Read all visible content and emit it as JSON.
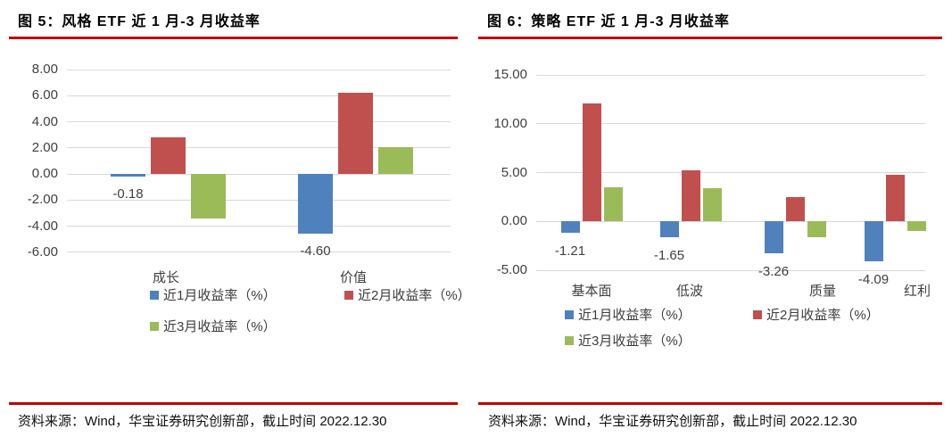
{
  "accent_red": "#C00000",
  "footer": {
    "text": "资料来源：Wind，华宝证券研究创新部，截止时间 2022.12.30"
  },
  "chart_data": [
    {
      "type": "bar",
      "title": "图 5：风格 ETF 近 1 月-3 月收益率",
      "categories": [
        "成长",
        "价值"
      ],
      "series": [
        {
          "name": "近1月收益率（%）",
          "color": "#4F81BD",
          "values": [
            -0.18,
            -4.6
          ],
          "data_labels": [
            "-0.18",
            "-4.60"
          ]
        },
        {
          "name": "近2月收益率（%）",
          "color": "#C0504D",
          "values": [
            2.8,
            6.2
          ]
        },
        {
          "name": "近3月收益率（%）",
          "color": "#9BBB59",
          "values": [
            -3.4,
            2.05
          ]
        }
      ],
      "ylim": [
        -6,
        8
      ],
      "ytick_step": 2,
      "yticks": [
        "8.00",
        "6.00",
        "4.00",
        "2.00",
        "0.00",
        "-2.00",
        "-4.00",
        "-6.00"
      ],
      "grid": true,
      "legend_position": "bottom"
    },
    {
      "type": "bar",
      "title": "图 6：策略 ETF 近 1 月-3 月收益率",
      "categories": [
        "基本面",
        "低波",
        "质量",
        "红利"
      ],
      "series": [
        {
          "name": "近1月收益率（%）",
          "color": "#4F81BD",
          "values": [
            -1.21,
            -1.65,
            -3.26,
            -4.09
          ],
          "data_labels": [
            "-1.21",
            "-1.65",
            "-3.26",
            "-4.09"
          ]
        },
        {
          "name": "近2月收益率（%）",
          "color": "#C0504D",
          "values": [
            12.1,
            5.2,
            2.5,
            4.8
          ]
        },
        {
          "name": "近3月收益率（%）",
          "color": "#9BBB59",
          "values": [
            3.5,
            3.4,
            -1.6,
            -0.95
          ]
        }
      ],
      "ylim": [
        -5,
        15
      ],
      "ytick_step": 5,
      "yticks": [
        "15.00",
        "10.00",
        "5.00",
        "0.00",
        "-5.00"
      ],
      "grid": true,
      "legend_position": "bottom"
    }
  ]
}
